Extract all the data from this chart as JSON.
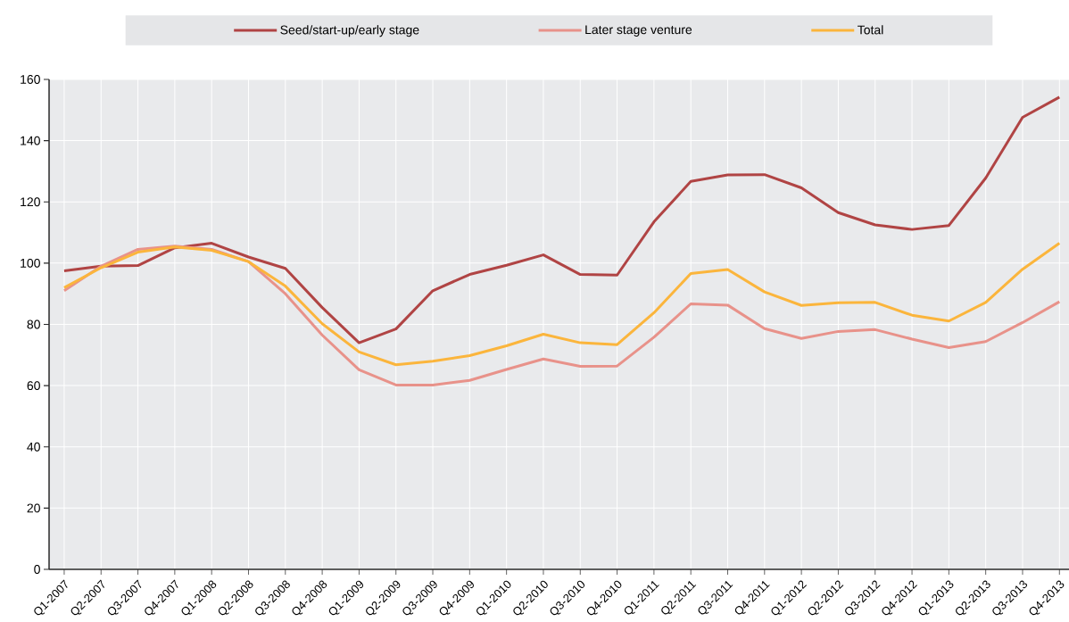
{
  "chart_data": {
    "type": "line",
    "categories": [
      "Q1-2007",
      "Q2-2007",
      "Q3-2007",
      "Q4-2007",
      "Q1-2008",
      "Q2-2008",
      "Q3-2008",
      "Q4-2008",
      "Q1-2009",
      "Q2-2009",
      "Q3-2009",
      "Q4-2009",
      "Q1-2010",
      "Q2-2010",
      "Q3-2010",
      "Q4-2010",
      "Q1-2011",
      "Q2-2011",
      "Q3-2011",
      "Q4-2011",
      "Q1-2012",
      "Q2-2012",
      "Q3-2012",
      "Q4-2012",
      "Q1-2013",
      "Q2-2013",
      "Q3-2013",
      "Q4-2013"
    ],
    "series": [
      {
        "name": "Seed/start-up/early stage",
        "color": "#b04444",
        "values": [
          97.5,
          99,
          99.2,
          105,
          106.5,
          102,
          98.3,
          85.5,
          74,
          78.5,
          91,
          96.3,
          99.3,
          102.7,
          96.3,
          96.1,
          113.5,
          126.7,
          128.8,
          128.9,
          124.6,
          116.5,
          112.5,
          111,
          112.3,
          127.8,
          147.6,
          154.2
        ]
      },
      {
        "name": "Later stage venture",
        "color": "#e8928a",
        "values": [
          91,
          99,
          104.5,
          105.6,
          104.5,
          100.5,
          90,
          76.5,
          65.2,
          60.2,
          60.2,
          61.7,
          65.3,
          68.7,
          66.3,
          66.4,
          75.8,
          86.7,
          86.3,
          78.6,
          75.4,
          77.7,
          78.3,
          75.2,
          72.4,
          74.4,
          80.6,
          87.4
        ]
      },
      {
        "name": "Total",
        "color": "#fbb53c",
        "values": [
          92,
          98.5,
          103.6,
          105.3,
          104.2,
          100.5,
          92.5,
          80.2,
          71,
          66.8,
          68,
          69.8,
          73,
          76.8,
          74,
          73.4,
          83.8,
          96.6,
          97.9,
          90.6,
          86.2,
          87.1,
          87.2,
          83,
          81.1,
          87.2,
          98,
          106.5
        ]
      }
    ],
    "ylim": [
      0,
      160
    ],
    "yticks": [
      0,
      20,
      40,
      60,
      80,
      100,
      120,
      140,
      160
    ],
    "grid": true,
    "legend": "top",
    "marker": "none",
    "line_style": "solid"
  }
}
